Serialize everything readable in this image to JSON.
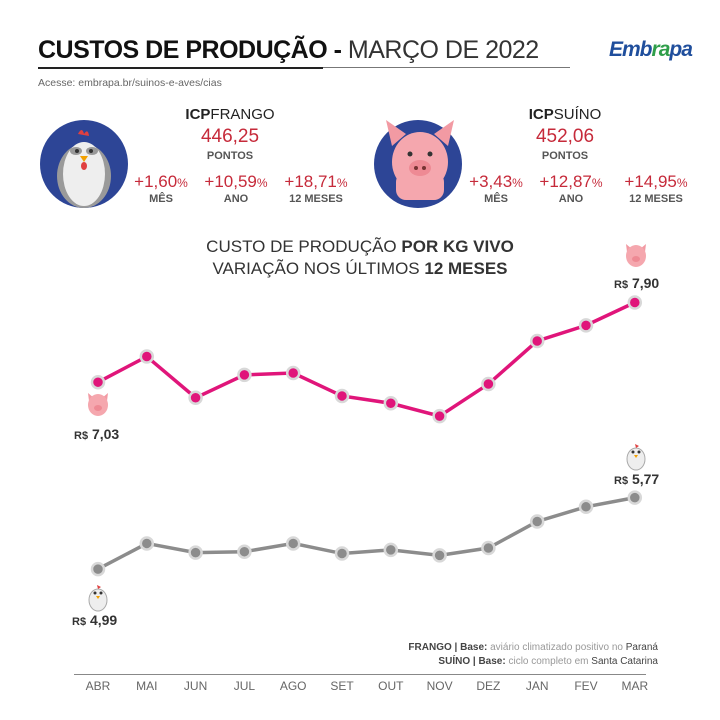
{
  "header": {
    "title_bold": "CUSTOS DE PRODUÇÃO -",
    "title_light": "MARÇO DE 2022",
    "url": "Acesse: embrapa.br/suinos-e-aves/cias",
    "logo": "Embrapa"
  },
  "frango": {
    "label_bold": "ICP",
    "label": "FRANGO",
    "value": "446,25",
    "unit": "PONTOS",
    "stats": [
      {
        "value": "+1,60",
        "pct": "%",
        "label": "MÊS"
      },
      {
        "value": "+10,59",
        "pct": "%",
        "label": "ANO"
      },
      {
        "value": "+18,71",
        "pct": "%",
        "label": "12 MESES"
      }
    ]
  },
  "suino": {
    "label_bold": "ICP",
    "label": "SUÍNO",
    "value": "452,06",
    "unit": "PONTOS",
    "stats": [
      {
        "value": "+3,43",
        "pct": "%",
        "label": "MÊS"
      },
      {
        "value": "+12,87",
        "pct": "%",
        "label": "ANO"
      },
      {
        "value": "+14,95",
        "pct": "%",
        "label": "12 MESES"
      }
    ]
  },
  "chart_title": {
    "line1": "CUSTO DE PRODUÇÃO ",
    "line1_bold": "POR KG VIVO",
    "line2": "VARIAÇÃO NOS ÚLTIMOS ",
    "line2_bold": "12 MESES"
  },
  "labels": {
    "currency": "R$",
    "suino_start": "7,03",
    "suino_end": "7,90",
    "frango_start": "4,99",
    "frango_end": "5,77"
  },
  "notes": {
    "n1_bold": "FRANGO | Base:",
    "n1": " aviário climatizado positivo no ",
    "n1_em": "Paraná",
    "n2_bold": "SUÍNO | Base:",
    "n2": " ciclo completo em ",
    "n2_em": "Santa Catarina"
  },
  "colors": {
    "suino": "#e0157a",
    "frango": "#8c8c8c",
    "accent": "#c62a3a",
    "circle": "#2d4596"
  },
  "chart_data": {
    "type": "line",
    "title": "CUSTO DE PRODUÇÃO POR KG VIVO - VARIAÇÃO NOS ÚLTIMOS 12 MESES",
    "xlabel": "",
    "ylabel": "R$/kg",
    "ylim": [
      4.5,
      8.2
    ],
    "grid": false,
    "categories": [
      "ABR",
      "MAI",
      "JUN",
      "JUL",
      "AGO",
      "SET",
      "OUT",
      "NOV",
      "DEZ",
      "JAN",
      "FEV",
      "MAR"
    ],
    "series": [
      {
        "name": "Suíno",
        "values": [
          7.03,
          7.31,
          6.86,
          7.11,
          7.13,
          6.88,
          6.8,
          6.66,
          7.01,
          7.48,
          7.65,
          7.9
        ]
      },
      {
        "name": "Frango",
        "values": [
          4.99,
          5.27,
          5.17,
          5.18,
          5.27,
          5.16,
          5.2,
          5.14,
          5.22,
          5.51,
          5.67,
          5.77
        ]
      }
    ]
  }
}
